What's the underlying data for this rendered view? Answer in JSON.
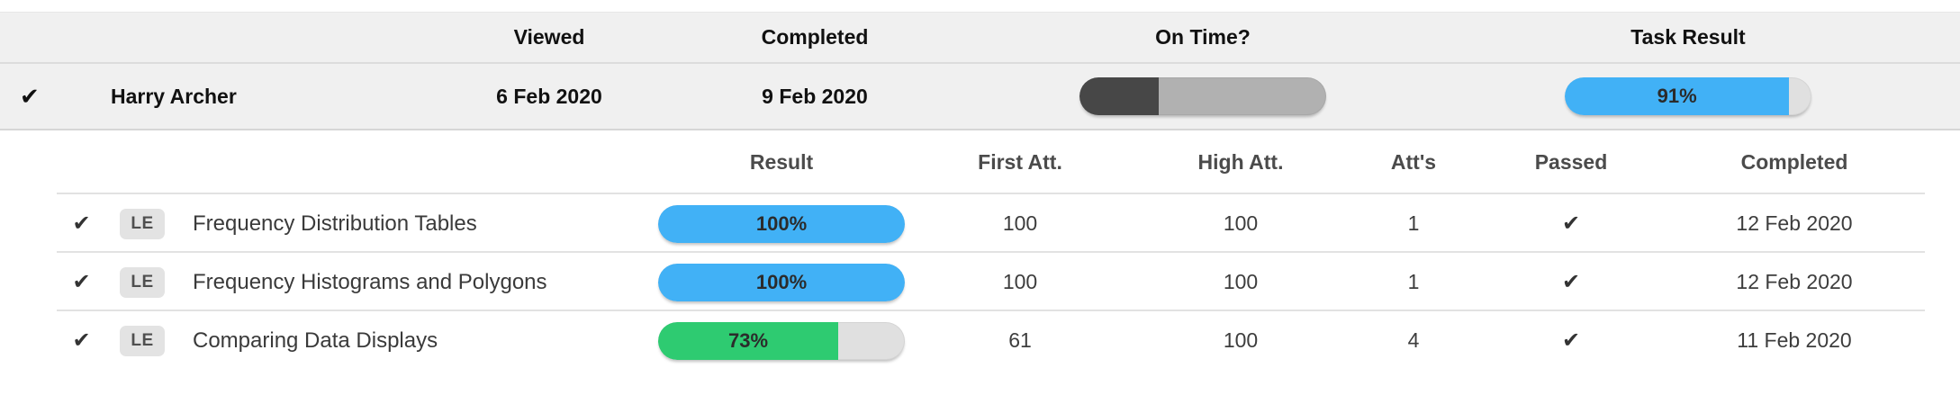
{
  "colors": {
    "result_blue": "#41b1f6",
    "result_green": "#2ecb71",
    "on_time_dark": "#474747",
    "on_time_track": "#b1b1b1",
    "bar_track": "#e0e0e0",
    "band_bg": "#f0f0f0"
  },
  "icons": {
    "check": "✔"
  },
  "summary": {
    "headers": {
      "viewed": "Viewed",
      "completed": "Completed",
      "on_time": "On Time?",
      "task_result": "Task Result"
    },
    "student": {
      "name": "Harry Archer",
      "viewed": "6 Feb 2020",
      "completed": "9 Feb 2020",
      "on_time_dark_percent": 32,
      "on_time_fill_color": "on_time_dark",
      "task_result_percent": 91,
      "task_result_label": "91%",
      "task_result_color": "result_blue"
    }
  },
  "subtable": {
    "headers": {
      "result": "Result",
      "first_att": "First Att.",
      "high_att": "High Att.",
      "atts": "Att's",
      "passed": "Passed",
      "completed": "Completed"
    },
    "rows": [
      {
        "badge": "LE",
        "title": "Frequency Distribution Tables",
        "result_percent": 100,
        "result_label": "100%",
        "result_color": "result_blue",
        "first_att": "100",
        "high_att": "100",
        "atts": "1",
        "passed": true,
        "completed": "12 Feb 2020"
      },
      {
        "badge": "LE",
        "title": "Frequency Histograms and Polygons",
        "result_percent": 100,
        "result_label": "100%",
        "result_color": "result_blue",
        "first_att": "100",
        "high_att": "100",
        "atts": "1",
        "passed": true,
        "completed": "12 Feb 2020"
      },
      {
        "badge": "LE",
        "title": "Comparing Data Displays",
        "result_percent": 73,
        "result_label": "73%",
        "result_color": "result_green",
        "first_att": "61",
        "high_att": "100",
        "atts": "4",
        "passed": true,
        "completed": "11 Feb 2020"
      }
    ]
  }
}
